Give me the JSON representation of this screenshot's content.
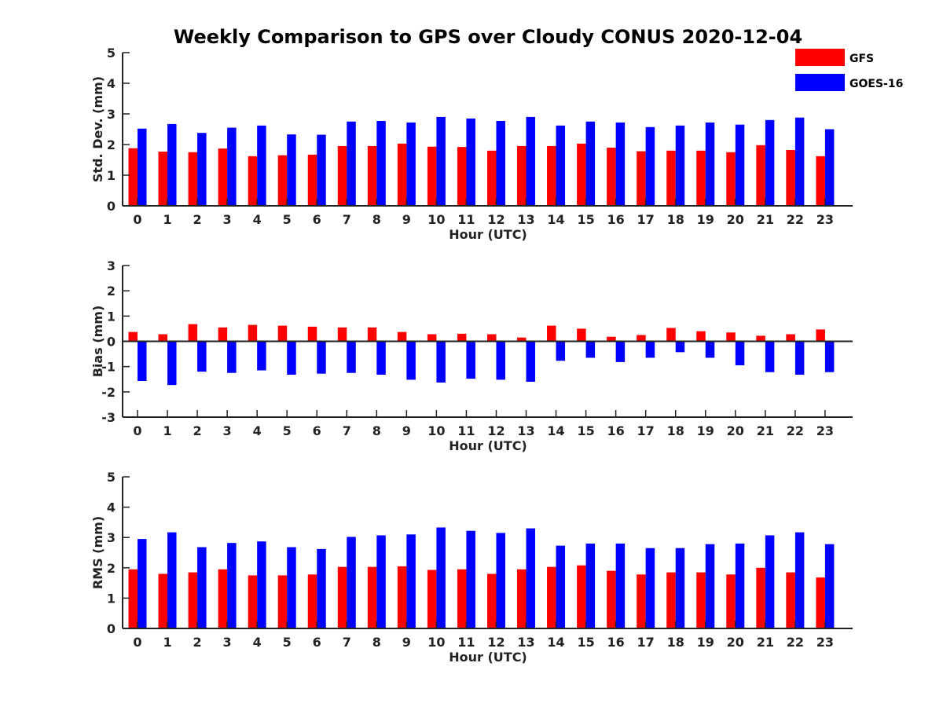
{
  "title": "Weekly Comparison to GPS over Cloudy CONUS 2020-12-04",
  "legend": {
    "placement": "top-right",
    "entries": [
      {
        "name": "GFS",
        "color": "#ff0000"
      },
      {
        "name": "GOES-16",
        "color": "#0000ff"
      }
    ]
  },
  "chart_data": [
    {
      "type": "bar",
      "xlabel": "Hour (UTC)",
      "ylabel": "Std. Dev. (mm)",
      "ylim": [
        0,
        5
      ],
      "yticks": [
        0,
        1,
        2,
        3,
        4,
        5
      ],
      "categories": [
        "0",
        "1",
        "2",
        "3",
        "4",
        "5",
        "6",
        "7",
        "8",
        "9",
        "10",
        "11",
        "12",
        "13",
        "14",
        "15",
        "16",
        "17",
        "18",
        "19",
        "20",
        "21",
        "22",
        "23"
      ],
      "series": [
        {
          "name": "GFS",
          "color": "#ff0000",
          "values": [
            1.88,
            1.77,
            1.75,
            1.87,
            1.62,
            1.65,
            1.67,
            1.95,
            1.95,
            2.03,
            1.93,
            1.92,
            1.8,
            1.95,
            1.95,
            2.03,
            1.9,
            1.78,
            1.8,
            1.8,
            1.75,
            1.98,
            1.82,
            1.62
          ]
        },
        {
          "name": "GOES-16",
          "color": "#0000ff",
          "values": [
            2.52,
            2.67,
            2.38,
            2.55,
            2.62,
            2.33,
            2.32,
            2.75,
            2.77,
            2.72,
            2.9,
            2.85,
            2.77,
            2.9,
            2.62,
            2.75,
            2.72,
            2.57,
            2.62,
            2.72,
            2.65,
            2.8,
            2.88,
            2.5
          ]
        }
      ]
    },
    {
      "type": "bar",
      "xlabel": "Hour (UTC)",
      "ylabel": "Bias (mm)",
      "ylim": [
        -3,
        3
      ],
      "yticks": [
        -3,
        -2,
        -1,
        0,
        1,
        2,
        3
      ],
      "categories": [
        "0",
        "1",
        "2",
        "3",
        "4",
        "5",
        "6",
        "7",
        "8",
        "9",
        "10",
        "11",
        "12",
        "13",
        "14",
        "15",
        "16",
        "17",
        "18",
        "19",
        "20",
        "21",
        "22",
        "23"
      ],
      "series": [
        {
          "name": "GFS",
          "color": "#ff0000",
          "values": [
            0.37,
            0.28,
            0.68,
            0.55,
            0.65,
            0.62,
            0.58,
            0.55,
            0.55,
            0.37,
            0.28,
            0.3,
            0.28,
            0.15,
            0.62,
            0.5,
            0.18,
            0.25,
            0.53,
            0.4,
            0.35,
            0.22,
            0.28,
            0.47
          ]
        },
        {
          "name": "GOES-16",
          "color": "#0000ff",
          "values": [
            -1.57,
            -1.73,
            -1.2,
            -1.25,
            -1.15,
            -1.32,
            -1.28,
            -1.25,
            -1.32,
            -1.52,
            -1.63,
            -1.48,
            -1.52,
            -1.6,
            -0.77,
            -0.65,
            -0.82,
            -0.65,
            -0.43,
            -0.65,
            -0.95,
            -1.22,
            -1.32,
            -1.22
          ]
        }
      ]
    },
    {
      "type": "bar",
      "xlabel": "Hour (UTC)",
      "ylabel": "RMS (mm)",
      "ylim": [
        0,
        5
      ],
      "yticks": [
        0,
        1,
        2,
        3,
        4,
        5
      ],
      "categories": [
        "0",
        "1",
        "2",
        "3",
        "4",
        "5",
        "6",
        "7",
        "8",
        "9",
        "10",
        "11",
        "12",
        "13",
        "14",
        "15",
        "16",
        "17",
        "18",
        "19",
        "20",
        "21",
        "22",
        "23"
      ],
      "series": [
        {
          "name": "GFS",
          "color": "#ff0000",
          "values": [
            1.95,
            1.8,
            1.85,
            1.95,
            1.75,
            1.75,
            1.78,
            2.03,
            2.03,
            2.05,
            1.93,
            1.95,
            1.8,
            1.95,
            2.03,
            2.08,
            1.9,
            1.78,
            1.85,
            1.85,
            1.78,
            2.0,
            1.85,
            1.68
          ]
        },
        {
          "name": "GOES-16",
          "color": "#0000ff",
          "values": [
            2.95,
            3.17,
            2.68,
            2.82,
            2.87,
            2.68,
            2.62,
            3.02,
            3.07,
            3.1,
            3.33,
            3.22,
            3.15,
            3.3,
            2.73,
            2.8,
            2.8,
            2.65,
            2.65,
            2.78,
            2.8,
            3.07,
            3.17,
            2.78
          ]
        }
      ]
    }
  ]
}
